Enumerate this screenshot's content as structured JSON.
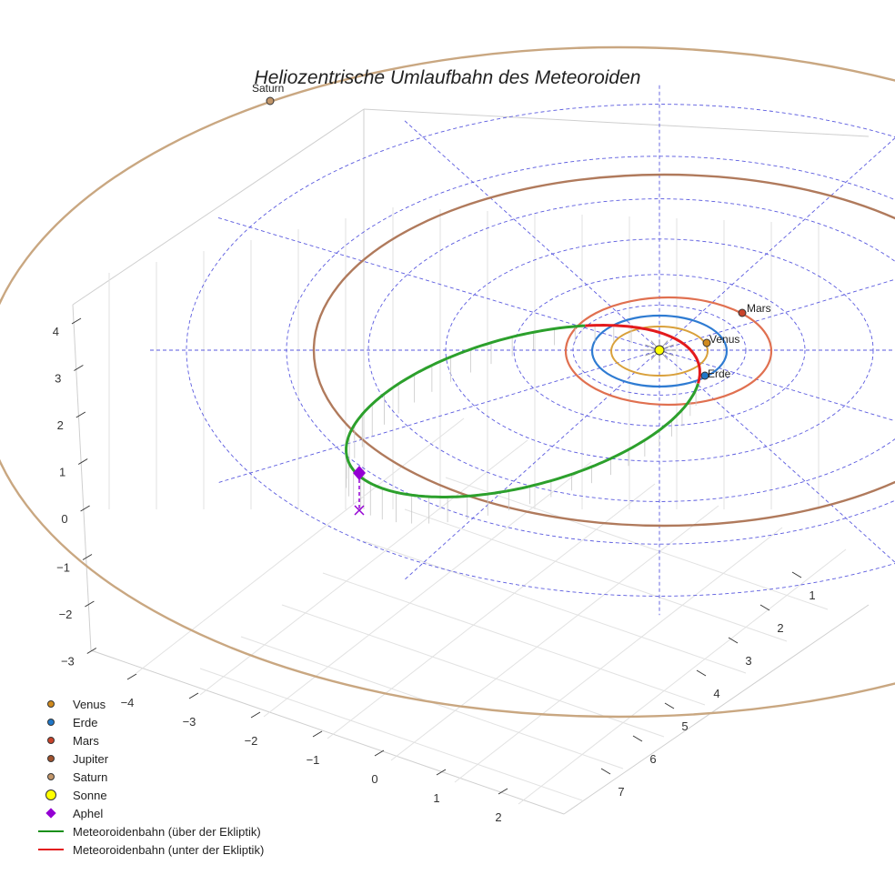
{
  "chart_data": {
    "type": "3d-orbit",
    "title": "Heliozentrische Umlaufbahn des Meteoroiden",
    "x_ticks": [
      "−4",
      "−3",
      "−2",
      "−1",
      "0",
      "1",
      "2"
    ],
    "y_ticks": [
      "1",
      "2",
      "3",
      "4",
      "5",
      "6",
      "7"
    ],
    "z_ticks": [
      "4",
      "3",
      "2",
      "1",
      "0",
      "−1",
      "−2",
      "−3"
    ],
    "planets": [
      {
        "name": "Venus",
        "label": "Venus",
        "color": "#d08a1e"
      },
      {
        "name": "Erde",
        "label": "Erde",
        "color": "#1f77c8"
      },
      {
        "name": "Mars",
        "label": "Mars",
        "color": "#c9432a"
      },
      {
        "name": "Jupiter",
        "label": "",
        "color": "#a0522d"
      },
      {
        "name": "Saturn",
        "label": "Saturn",
        "color": "#c2966a"
      }
    ],
    "orbit_colors": {
      "venus": "#d9a03a",
      "erde": "#2e7bd2",
      "mars": "#e07050",
      "jupiter": "#b07a5c",
      "saturn": "#c9a781",
      "above": "#2ca02c",
      "below": "#e31a1c",
      "grid": "#5a5adf",
      "aphel": "#9400d3",
      "sonne": "#ffff00"
    },
    "legend": [
      {
        "label": "Venus",
        "kind": "dot",
        "color": "#d08a1e"
      },
      {
        "label": "Erde",
        "kind": "dot",
        "color": "#1f77c8"
      },
      {
        "label": "Mars",
        "kind": "dot",
        "color": "#c9432a"
      },
      {
        "label": "Jupiter",
        "kind": "dot",
        "color": "#a0522d"
      },
      {
        "label": "Saturn",
        "kind": "dot",
        "color": "#c2966a"
      },
      {
        "label": "Sonne",
        "kind": "bigdot",
        "color": "#ffff00"
      },
      {
        "label": "Aphel",
        "kind": "diamond",
        "color": "#9400d3"
      },
      {
        "label": "Meteoroidenbahn (über der Ekliptik)",
        "kind": "line",
        "color": "#1a8f1a"
      },
      {
        "label": "Meteoroidenbahn (unter der Ekliptik)",
        "kind": "line",
        "color": "#e31a1c"
      }
    ]
  }
}
